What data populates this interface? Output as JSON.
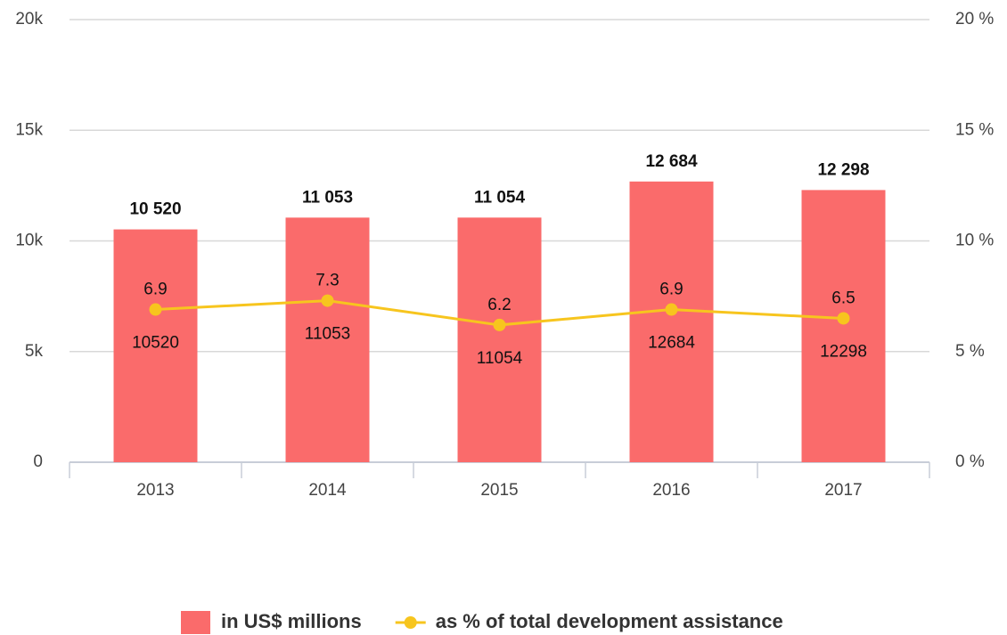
{
  "chart_data": {
    "type": "bar",
    "categories": [
      "2013",
      "2014",
      "2015",
      "2016",
      "2017"
    ],
    "series": [
      {
        "name": "in US$ millions",
        "type": "bar",
        "color": "#fa6b6b",
        "values": [
          10520,
          11053,
          11054,
          12684,
          12298
        ],
        "value_labels": [
          "10 520",
          "11 053",
          "11 054",
          "12 684",
          "12 298"
        ]
      },
      {
        "name": "as % of total development assistance",
        "type": "line",
        "axis": "y2",
        "color": "#f7c51e",
        "values": [
          6.9,
          7.3,
          6.2,
          6.9,
          6.5
        ]
      }
    ],
    "ylim": [
      0,
      20000
    ],
    "yticks": [
      0,
      {
        "value": 5000,
        "label": "5k"
      },
      {
        "value": 10000,
        "label": "10k"
      },
      {
        "value": 15000,
        "label": "15k"
      },
      {
        "value": 20000,
        "label": "20k"
      }
    ],
    "y2lim": [
      0,
      20
    ],
    "y2ticks": [
      {
        "value": 0,
        "label": "0 %"
      },
      {
        "value": 5,
        "label": "5 %"
      },
      {
        "value": 10,
        "label": "10 %"
      },
      {
        "value": 15,
        "label": "15 %"
      },
      {
        "value": 20,
        "label": "20 %"
      }
    ],
    "grid": true,
    "legend": "bottom"
  }
}
